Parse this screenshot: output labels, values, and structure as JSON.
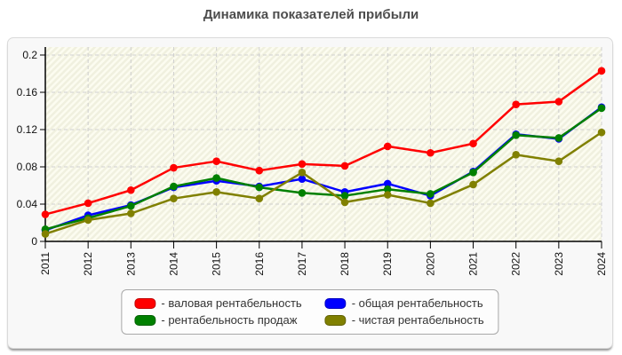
{
  "title": "Динамика показателей прибыли",
  "colors": {
    "panel_bg": "#f8f8f8",
    "plot_hatch_light": "#fcfcf0",
    "plot_hatch_dark": "#f0f0df",
    "grid": "#cfcfcf",
    "axis": "#000000",
    "title_text": "#4d4d4d"
  },
  "chart_data": {
    "type": "line",
    "title": "Динамика показателей прибыли",
    "x": [
      2011,
      2012,
      2013,
      2014,
      2015,
      2016,
      2017,
      2018,
      2019,
      2020,
      2021,
      2022,
      2023,
      2024
    ],
    "series": [
      {
        "key": "gross-margin",
        "name": "валовая рентабельность",
        "legend_label": "- валовая рентабельность",
        "color": "#ff0000",
        "values": [
          0.029,
          0.041,
          0.055,
          0.079,
          0.086,
          0.076,
          0.083,
          0.081,
          0.102,
          0.095,
          0.105,
          0.147,
          0.15,
          0.183
        ]
      },
      {
        "key": "total-margin",
        "name": "общая рентабельность",
        "legend_label": "- общая рентабельность",
        "color": "#0000ff",
        "values": [
          0.012,
          0.028,
          0.039,
          0.058,
          0.065,
          0.059,
          0.067,
          0.053,
          0.062,
          0.049,
          0.075,
          0.115,
          0.11,
          0.144
        ]
      },
      {
        "key": "sales-margin",
        "name": "рентабельность продаж",
        "legend_label": "- рентабельность продаж",
        "color": "#008000",
        "values": [
          0.013,
          0.025,
          0.038,
          0.059,
          0.068,
          0.058,
          0.052,
          0.049,
          0.056,
          0.051,
          0.074,
          0.114,
          0.111,
          0.143
        ]
      },
      {
        "key": "net-margin",
        "name": "чистая рентабельность",
        "legend_label": "- чистая рентабельность",
        "color": "#808000",
        "values": [
          0.008,
          0.023,
          0.03,
          0.046,
          0.053,
          0.046,
          0.074,
          0.042,
          0.05,
          0.041,
          0.061,
          0.093,
          0.086,
          0.117
        ]
      }
    ],
    "xlabel": "",
    "ylabel": "",
    "ylim": [
      0,
      0.2
    ],
    "yticks": [
      0,
      0.04,
      0.08,
      0.12,
      0.16,
      0.2
    ],
    "ytick_labels": [
      "0",
      "0.04",
      "0.08",
      "0.12",
      "0.16",
      "0.2"
    ],
    "xtick_labels": [
      "2011",
      "2012",
      "2013",
      "2014",
      "2015",
      "2016",
      "2017",
      "2018",
      "2019",
      "2020",
      "2021",
      "2022",
      "2023",
      "2024"
    ],
    "grid": "dashed",
    "legend_position": "bottom"
  }
}
